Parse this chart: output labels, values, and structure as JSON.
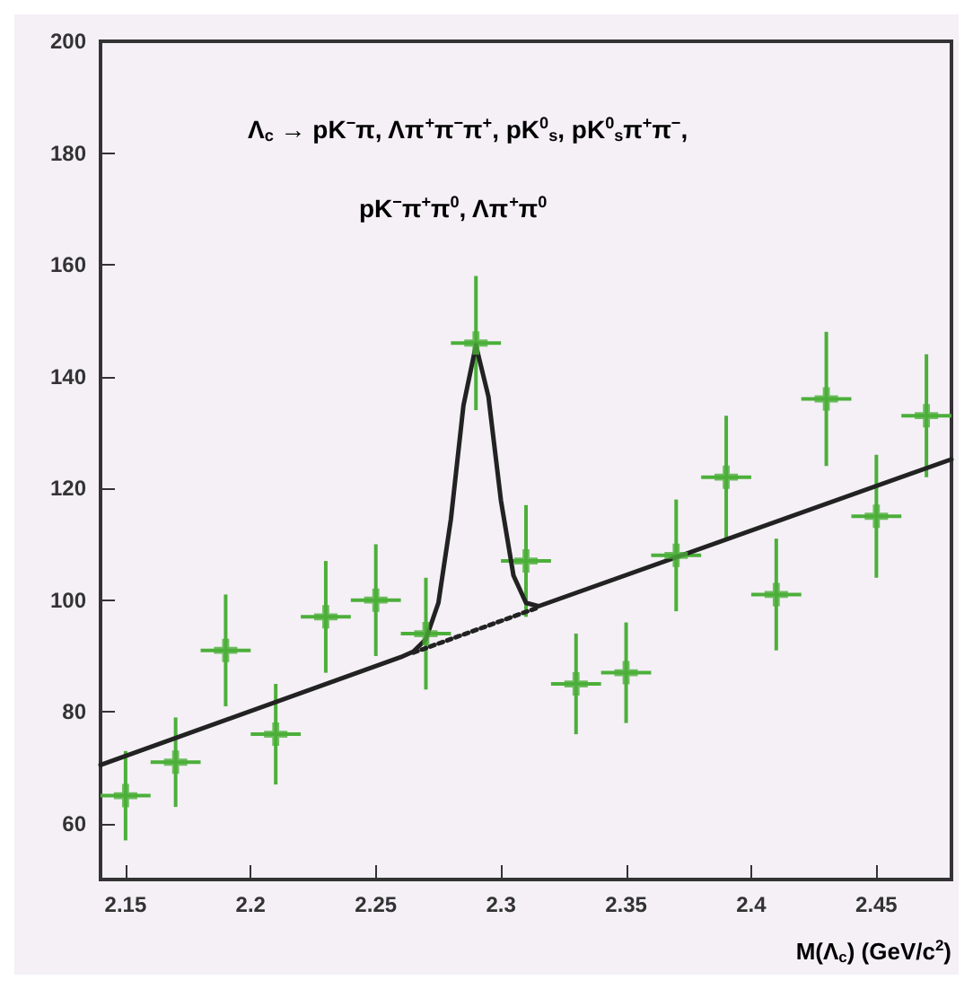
{
  "chart_data": {
    "type": "scatter",
    "xlabel": "M(Λ$_{c}$) (GeV/c$^{2}$)",
    "annotations": [
      "Λ$_{c}$ → pK$^{−}$π, Λπ$^{+}$π$^{−}$π$^{+}$, pK$^{0}$$_{s}$, pK$^{0}$$_{s}$π$^{+}$π$^{−}$,",
      "pK$^{−}$π$^{+}$π$^{0}$, Λπ$^{+}$π$^{0}$"
    ],
    "xlim": [
      2.14,
      2.48
    ],
    "xticks": [
      2.15,
      2.2,
      2.25,
      2.3,
      2.35,
      2.4,
      2.45
    ],
    "ylim": [
      50,
      200
    ],
    "yticks": [
      60,
      80,
      100,
      120,
      140,
      160,
      180,
      200
    ],
    "grid": false,
    "series": [
      {
        "color": "#4caf3a",
        "marker": "cross",
        "x": [
          2.15,
          2.17,
          2.19,
          2.21,
          2.23,
          2.25,
          2.27,
          2.29,
          2.31,
          2.33,
          2.35,
          2.37,
          2.39,
          2.41,
          2.43,
          2.45,
          2.47
        ],
        "values": [
          65,
          71,
          91,
          76,
          97,
          100,
          94,
          146,
          107,
          85,
          87,
          108,
          122,
          101,
          136,
          115,
          133
        ],
        "errors": [
          8,
          8,
          10,
          9,
          10,
          10,
          10,
          12,
          10,
          9,
          9,
          10,
          11,
          10,
          12,
          11,
          11
        ],
        "xerrors": [
          0.01,
          0.01,
          0.01,
          0.01,
          0.01,
          0.01,
          0.01,
          0.01,
          0.01,
          0.01,
          0.01,
          0.01,
          0.01,
          0.01,
          0.01,
          0.01,
          0.01
        ]
      },
      {
        "type": "line",
        "color": "#222222",
        "line_style": "solid",
        "x": [
          2.14,
          2.26,
          2.265,
          2.27,
          2.275,
          2.28,
          2.285,
          2.29,
          2.295,
          2.3,
          2.305,
          2.31,
          2.315,
          2.48
        ],
        "values": [
          70.5,
          89.8,
          90.8,
          93,
          99.5,
          114.5,
          134.8,
          145.6,
          136.4,
          117.8,
          104.4,
          99.5,
          98.9,
          125.2
        ]
      },
      {
        "type": "line",
        "color": "#222222",
        "line_style": "dotted",
        "x": [
          2.265,
          2.315
        ],
        "values": [
          90.6,
          98.7
        ]
      }
    ]
  }
}
